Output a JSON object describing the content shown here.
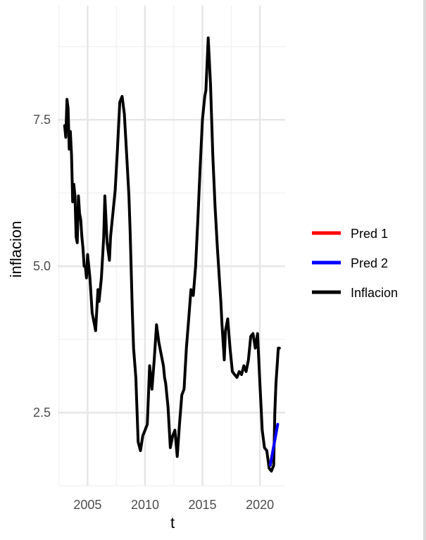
{
  "chart_data": {
    "type": "line",
    "title": "",
    "xlabel": "t",
    "ylabel": "inflacion",
    "xlim": [
      2002.4,
      2022.2
    ],
    "ylim": [
      1.25,
      9.45
    ],
    "x_ticks": [
      2005,
      2010,
      2015,
      2020
    ],
    "x_tick_labels": [
      "2005",
      "2010",
      "2015",
      "2020"
    ],
    "y_ticks": [
      2.5,
      5.0,
      7.5
    ],
    "y_tick_labels": [
      "2.5",
      "5.0",
      "7.5"
    ],
    "x_minor": [
      2002.5,
      2007.5,
      2012.5,
      2017.5
    ],
    "y_minor": [
      1.25,
      3.75,
      6.25,
      8.75
    ],
    "grid": true,
    "legend_position": "right",
    "colors": {
      "pred1": "#ff0000",
      "pred2": "#0000ff",
      "inflacion": "#000000"
    },
    "legend": [
      {
        "key": "pred1",
        "label": "Pred 1"
      },
      {
        "key": "pred2",
        "label": "Pred 2"
      },
      {
        "key": "inflacion",
        "label": "Inflacion"
      }
    ],
    "series": [
      {
        "name": "Inflacion",
        "key": "inflacion",
        "x": [
          2003.0,
          2003.1,
          2003.2,
          2003.3,
          2003.4,
          2003.5,
          2003.6,
          2003.7,
          2003.8,
          2003.9,
          2004.0,
          2004.1,
          2004.2,
          2004.3,
          2004.4,
          2004.5,
          2004.6,
          2004.7,
          2004.8,
          2004.9,
          2005.0,
          2005.2,
          2005.4,
          2005.5,
          2005.7,
          2005.9,
          2006.0,
          2006.2,
          2006.4,
          2006.5,
          2006.7,
          2006.9,
          2007.0,
          2007.2,
          2007.4,
          2007.6,
          2007.8,
          2008.0,
          2008.2,
          2008.4,
          2008.6,
          2008.7,
          2008.8,
          2008.9,
          2009.0,
          2009.2,
          2009.4,
          2009.6,
          2009.8,
          2010.0,
          2010.2,
          2010.4,
          2010.6,
          2010.8,
          2011.0,
          2011.2,
          2011.4,
          2011.6,
          2011.7,
          2011.8,
          2012.0,
          2012.2,
          2012.4,
          2012.6,
          2012.8,
          2013.0,
          2013.2,
          2013.4,
          2013.6,
          2013.8,
          2014.0,
          2014.2,
          2014.4,
          2014.6,
          2014.8,
          2015.0,
          2015.2,
          2015.3,
          2015.5,
          2015.7,
          2015.9,
          2016.1,
          2016.3,
          2016.5,
          2016.6,
          2016.7,
          2016.8,
          2016.9,
          2017.0,
          2017.2,
          2017.4,
          2017.6,
          2017.8,
          2018.0,
          2018.2,
          2018.4,
          2018.6,
          2018.8,
          2019.0,
          2019.2,
          2019.4,
          2019.6,
          2019.8,
          2020.0,
          2020.2,
          2020.4,
          2020.6,
          2020.8,
          2021.0,
          2021.1,
          2021.2,
          2021.3,
          2021.4,
          2021.5,
          2021.6,
          2021.7
        ],
        "values": [
          7.4,
          7.2,
          7.85,
          7.7,
          7.0,
          7.3,
          6.9,
          6.1,
          6.4,
          6.2,
          5.5,
          5.4,
          6.2,
          5.9,
          5.8,
          5.5,
          5.3,
          5.0,
          5.0,
          4.8,
          5.2,
          4.8,
          4.2,
          4.1,
          3.9,
          4.6,
          4.4,
          4.8,
          5.5,
          6.2,
          5.4,
          5.1,
          5.5,
          5.9,
          6.3,
          7.0,
          7.8,
          7.9,
          7.6,
          6.9,
          6.2,
          5.6,
          4.9,
          4.2,
          3.6,
          3.1,
          2.0,
          1.85,
          2.1,
          2.2,
          2.3,
          3.3,
          2.9,
          3.4,
          4.0,
          3.7,
          3.5,
          3.3,
          3.1,
          3.0,
          2.6,
          1.9,
          2.1,
          2.2,
          1.75,
          2.3,
          2.8,
          2.9,
          3.6,
          4.1,
          4.6,
          4.5,
          5.0,
          5.8,
          6.7,
          7.5,
          7.9,
          8.0,
          8.9,
          8.1,
          6.9,
          6.0,
          5.3,
          4.7,
          4.4,
          4.0,
          3.7,
          3.4,
          3.9,
          4.1,
          3.6,
          3.2,
          3.15,
          3.1,
          3.2,
          3.15,
          3.3,
          3.2,
          3.4,
          3.8,
          3.85,
          3.6,
          3.85,
          3.0,
          2.2,
          1.9,
          1.85,
          1.55,
          1.5,
          1.55,
          1.6,
          2.5,
          3.0,
          3.3,
          3.6,
          3.6
        ]
      },
      {
        "name": "Pred 1",
        "key": "pred1",
        "x": [
          2020.9,
          2021.5
        ],
        "values": [
          1.6,
          2.25
        ]
      },
      {
        "name": "Pred 2",
        "key": "pred2",
        "x": [
          2020.9,
          2021.55
        ],
        "values": [
          1.6,
          2.3
        ]
      }
    ]
  }
}
